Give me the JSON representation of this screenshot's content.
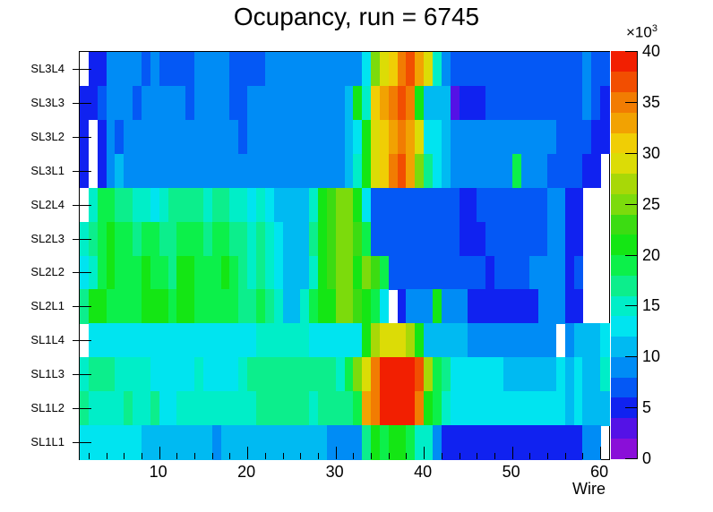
{
  "title": "Ocupancy, run = 6745",
  "axes": {
    "x_title": "Wire",
    "x_ticks": [
      10,
      20,
      30,
      40,
      50,
      60
    ],
    "x_minor_step": 2,
    "x_range_min": 1,
    "x_range_max": 61
  },
  "colorbar": {
    "exponent_base": "×10",
    "exponent_power": "3",
    "tick_values": [
      0,
      5,
      10,
      15,
      20,
      25,
      30,
      35,
      40
    ],
    "min_thousands": 0,
    "max_thousands": 40,
    "levels": 20
  },
  "palette": [
    "#8a0fd8",
    "#5412e6",
    "#1022f0",
    "#0458f5",
    "#008cf5",
    "#00baf2",
    "#00e4f0",
    "#00eec8",
    "#0cee8c",
    "#0cf04a",
    "#14e614",
    "#3cdc12",
    "#7cdb0c",
    "#a8d807",
    "#dcdc06",
    "#f0ce05",
    "#f2a202",
    "#f27c02",
    "#f24e01",
    "#f21f01"
  ],
  "chart_data": {
    "type": "heatmap",
    "title": "Ocupancy, run = 6745",
    "xlabel": "Wire",
    "x_bins": 60,
    "x_first_wire": 1,
    "value_units": "counts in thousands (×10³), 0 = empty (white) bin",
    "zmin": 0,
    "zmax": 40,
    "rows_top_to_bottom": [
      "SL3L4",
      "SL3L3",
      "SL3L2",
      "SL3L1",
      "SL2L4",
      "SL2L3",
      "SL2L2",
      "SL2L1",
      "SL1L4",
      "SL1L3",
      "SL1L2",
      "SL1L1"
    ],
    "values_thousands": [
      [
        0,
        5,
        5,
        9,
        9,
        9,
        9,
        7,
        9,
        7,
        7,
        7,
        7,
        9,
        9,
        9,
        9,
        7,
        7,
        7,
        7,
        9,
        9,
        9,
        9,
        9,
        9,
        9,
        9,
        9,
        9,
        9,
        13,
        25,
        29,
        31,
        35,
        37,
        33,
        29,
        15,
        9,
        7,
        7,
        7,
        7,
        7,
        7,
        7,
        7,
        7,
        7,
        7,
        7,
        7,
        7,
        7,
        9,
        7,
        7
      ],
      [
        5,
        5,
        7,
        9,
        9,
        9,
        7,
        9,
        9,
        9,
        9,
        9,
        7,
        9,
        9,
        9,
        9,
        7,
        7,
        9,
        9,
        9,
        9,
        9,
        9,
        9,
        9,
        9,
        9,
        9,
        11,
        21,
        15,
        31,
        33,
        35,
        37,
        35,
        21,
        11,
        11,
        11,
        3,
        5,
        5,
        5,
        7,
        7,
        7,
        7,
        7,
        7,
        7,
        7,
        7,
        7,
        7,
        9,
        7,
        5
      ],
      [
        5,
        0,
        5,
        9,
        7,
        9,
        9,
        9,
        9,
        9,
        9,
        9,
        9,
        9,
        9,
        9,
        9,
        9,
        7,
        9,
        9,
        9,
        9,
        9,
        9,
        9,
        9,
        9,
        9,
        9,
        11,
        13,
        21,
        29,
        31,
        33,
        35,
        33,
        29,
        13,
        13,
        11,
        9,
        9,
        9,
        9,
        9,
        9,
        9,
        9,
        9,
        9,
        9,
        9,
        7,
        7,
        7,
        7,
        5,
        5
      ],
      [
        5,
        0,
        5,
        9,
        11,
        9,
        9,
        9,
        9,
        9,
        9,
        9,
        9,
        9,
        9,
        9,
        9,
        9,
        9,
        9,
        9,
        9,
        9,
        9,
        9,
        9,
        9,
        9,
        9,
        9,
        11,
        15,
        21,
        29,
        31,
        35,
        37,
        33,
        25,
        17,
        13,
        11,
        9,
        9,
        9,
        9,
        9,
        9,
        9,
        19,
        9,
        9,
        9,
        7,
        7,
        7,
        7,
        5,
        5,
        0
      ],
      [
        0,
        15,
        19,
        19,
        17,
        17,
        15,
        15,
        13,
        15,
        17,
        17,
        17,
        17,
        15,
        17,
        17,
        15,
        15,
        13,
        15,
        13,
        11,
        11,
        11,
        11,
        15,
        21,
        23,
        25,
        25,
        21,
        13,
        7,
        7,
        7,
        7,
        7,
        7,
        7,
        7,
        7,
        7,
        5,
        5,
        7,
        7,
        7,
        7,
        7,
        7,
        7,
        7,
        9,
        9,
        5,
        5,
        0,
        0,
        0
      ],
      [
        15,
        17,
        19,
        21,
        19,
        19,
        17,
        19,
        19,
        17,
        17,
        19,
        19,
        19,
        17,
        19,
        19,
        17,
        17,
        15,
        17,
        15,
        13,
        11,
        11,
        11,
        17,
        21,
        23,
        25,
        25,
        23,
        19,
        7,
        7,
        7,
        7,
        7,
        7,
        7,
        7,
        7,
        7,
        5,
        5,
        5,
        7,
        7,
        7,
        7,
        7,
        7,
        7,
        9,
        9,
        5,
        5,
        0,
        0,
        0
      ],
      [
        13,
        15,
        19,
        21,
        19,
        19,
        19,
        21,
        19,
        19,
        17,
        21,
        21,
        19,
        19,
        19,
        21,
        19,
        17,
        15,
        17,
        15,
        13,
        11,
        11,
        11,
        15,
        21,
        23,
        25,
        25,
        21,
        25,
        23,
        19,
        7,
        7,
        7,
        7,
        7,
        7,
        7,
        7,
        7,
        7,
        7,
        5,
        7,
        7,
        7,
        7,
        9,
        9,
        9,
        9,
        5,
        7,
        0,
        0,
        0
      ],
      [
        17,
        21,
        21,
        19,
        19,
        19,
        19,
        21,
        21,
        21,
        19,
        21,
        21,
        19,
        19,
        19,
        19,
        19,
        17,
        17,
        19,
        17,
        15,
        11,
        11,
        15,
        19,
        21,
        21,
        25,
        25,
        23,
        21,
        19,
        13,
        0,
        5,
        9,
        9,
        9,
        21,
        9,
        9,
        9,
        5,
        5,
        5,
        5,
        5,
        5,
        5,
        5,
        9,
        9,
        9,
        5,
        5,
        0,
        0,
        0
      ],
      [
        0,
        13,
        13,
        13,
        13,
        13,
        13,
        13,
        13,
        13,
        13,
        13,
        13,
        13,
        13,
        13,
        13,
        13,
        13,
        13,
        15,
        15,
        15,
        15,
        15,
        15,
        13,
        13,
        13,
        13,
        13,
        13,
        21,
        27,
        29,
        29,
        29,
        27,
        21,
        11,
        11,
        11,
        11,
        11,
        9,
        9,
        9,
        9,
        9,
        9,
        9,
        9,
        9,
        9,
        0,
        9,
        11,
        11,
        11,
        13
      ],
      [
        15,
        17,
        17,
        17,
        15,
        15,
        15,
        15,
        13,
        13,
        13,
        13,
        13,
        15,
        13,
        13,
        13,
        13,
        15,
        17,
        17,
        17,
        17,
        17,
        17,
        17,
        17,
        17,
        17,
        15,
        19,
        25,
        29,
        35,
        39,
        39,
        39,
        39,
        37,
        27,
        19,
        17,
        13,
        13,
        13,
        13,
        13,
        13,
        11,
        11,
        11,
        11,
        11,
        11,
        13,
        11,
        13,
        11,
        11,
        15
      ],
      [
        17,
        15,
        15,
        15,
        15,
        17,
        15,
        15,
        17,
        13,
        13,
        15,
        15,
        15,
        15,
        15,
        15,
        15,
        15,
        15,
        17,
        17,
        17,
        17,
        17,
        17,
        15,
        17,
        17,
        17,
        17,
        19,
        33,
        35,
        39,
        39,
        39,
        39,
        35,
        21,
        19,
        15,
        13,
        13,
        13,
        13,
        13,
        13,
        13,
        13,
        13,
        13,
        13,
        13,
        13,
        11,
        13,
        11,
        11,
        11
      ],
      [
        13,
        13,
        13,
        13,
        13,
        13,
        13,
        11,
        11,
        11,
        11,
        11,
        11,
        11,
        11,
        9,
        11,
        11,
        11,
        11,
        11,
        11,
        11,
        11,
        11,
        11,
        11,
        11,
        9,
        9,
        9,
        9,
        17,
        21,
        19,
        21,
        21,
        19,
        15,
        15,
        9,
        5,
        5,
        5,
        5,
        5,
        5,
        5,
        5,
        5,
        5,
        5,
        5,
        5,
        5,
        5,
        5,
        9,
        9,
        0
      ]
    ]
  }
}
